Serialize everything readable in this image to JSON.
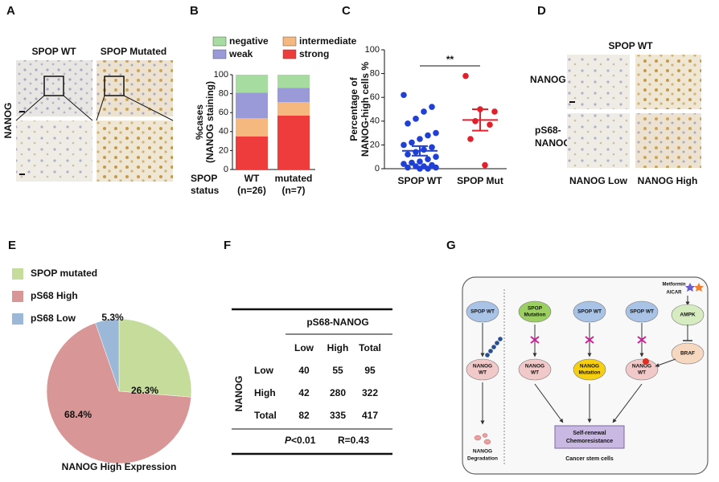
{
  "panel_labels": [
    "A",
    "B",
    "C",
    "D",
    "E",
    "F",
    "G"
  ],
  "panel_a": {
    "columns": [
      "SPOP WT",
      "SPOP Mutated"
    ],
    "row_label": "NANOG"
  },
  "panel_d": {
    "title": "SPOP WT",
    "rows": [
      [
        "NANOG"
      ],
      [
        "pS68-",
        "NANOG"
      ]
    ],
    "columns": [
      "NANOG Low",
      "NANOG High"
    ]
  },
  "chart_data": [
    {
      "type": "bar",
      "stacked": true,
      "categories": [
        "WT",
        "mutated"
      ],
      "category_sublabels": [
        "(n=26)",
        "(n=7)"
      ],
      "xlabel": [
        "SPOP",
        "status"
      ],
      "ylabel": [
        "%cases",
        "(NANOG staining)"
      ],
      "ylim": [
        0,
        100
      ],
      "yticks": [
        0,
        20,
        40,
        60,
        80,
        100
      ],
      "series": [
        {
          "name": "strong",
          "color": "#ee3b3b",
          "values": [
            35,
            57
          ]
        },
        {
          "name": "intermediate",
          "color": "#f5b97f",
          "values": [
            19,
            14
          ]
        },
        {
          "name": "weak",
          "color": "#9a9ad8",
          "values": [
            27,
            15
          ]
        },
        {
          "name": "negative",
          "color": "#a6dca0",
          "values": [
            19,
            14
          ]
        }
      ]
    },
    {
      "type": "scatter",
      "categories": [
        "SPOP WT",
        "SPOP Mut"
      ],
      "ylabel": [
        "Percentage of",
        "NANOG-high cells %"
      ],
      "ylim": [
        0,
        100
      ],
      "yticks": [
        0,
        20,
        40,
        60,
        80,
        100
      ],
      "annotation": "**",
      "series": [
        {
          "color": "#1f3fd6",
          "values": [
            62,
            52,
            48,
            42,
            38,
            30,
            28,
            25,
            22,
            20,
            18,
            16,
            14,
            12,
            10,
            8,
            6,
            5,
            4,
            3,
            2,
            2,
            1,
            1,
            0,
            0
          ]
        },
        {
          "color": "#e2202c",
          "values": [
            78,
            50,
            48,
            40,
            37,
            25,
            3
          ]
        }
      ],
      "mean": [
        15,
        41
      ],
      "error": [
        4,
        9
      ]
    },
    {
      "type": "pie",
      "categories": [
        "SPOP mutated",
        "pS68 High",
        "pS68 Low"
      ],
      "values": [
        26.3,
        68.4,
        5.3
      ],
      "value_labels": [
        "26.3%",
        "68.4%",
        "5.3%"
      ],
      "colors": [
        "#c5dc9b",
        "#d99696",
        "#9cb8d9"
      ],
      "title": "NANOG High Expression"
    }
  ],
  "table": {
    "column_group": "pS68-NANOG",
    "columns": [
      "Low",
      "High",
      "Total"
    ],
    "row_group": "NANOG",
    "rows": [
      {
        "label": "Low",
        "cells": [
          40,
          55,
          95
        ]
      },
      {
        "label": "High",
        "cells": [
          42,
          280,
          322
        ]
      },
      {
        "label": "Total",
        "cells": [
          82,
          335,
          417
        ]
      }
    ],
    "footer": {
      "p_symbol": "P",
      "p_value": "<0.01",
      "r": "R=0.43"
    }
  },
  "diagram": {
    "drug": [
      "Metformin",
      "AICAR"
    ],
    "nodes": [
      [
        "SPOP WT"
      ],
      [
        "SPOP",
        "Mutation"
      ],
      [
        "SPOP WT"
      ],
      [
        "SPOP WT"
      ],
      [
        "AMPK"
      ],
      [
        "NANOG",
        "WT"
      ],
      [
        "NANOG",
        "WT"
      ],
      [
        "NANOG",
        "Mutation"
      ],
      [
        "NANOG",
        "WT"
      ],
      [
        "BRAF"
      ]
    ],
    "degradation": [
      "NANOG",
      "Degradation"
    ],
    "outcome": [
      "Self-renewal",
      "Chemoresistance"
    ],
    "caption": "Cancer stem cells"
  }
}
